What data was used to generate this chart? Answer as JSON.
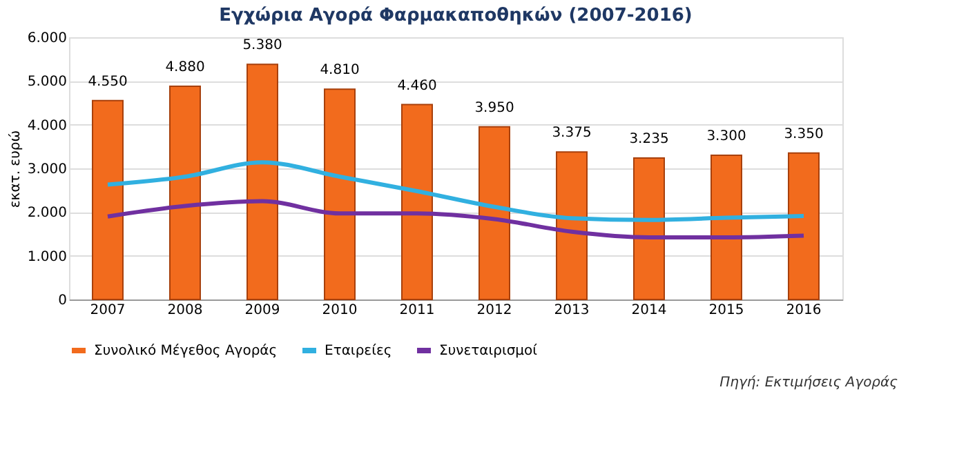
{
  "chart_data": {
    "type": "bar",
    "title": "Εγχώρια Αγορά Φαρμακαποθηκών (2007-2016)",
    "ylabel": "εκατ. ευρώ",
    "categories": [
      "2007",
      "2008",
      "2009",
      "2010",
      "2011",
      "2012",
      "2013",
      "2014",
      "2015",
      "2016"
    ],
    "series": [
      {
        "name": "Συνολικό Μέγεθος Αγοράς",
        "color": "#f26b1d",
        "values": [
          4550,
          4880,
          5380,
          4810,
          4460,
          3950,
          3375,
          3235,
          3300,
          3350
        ],
        "value_labels": [
          "4.550",
          "4.880",
          "5.380",
          "4.810",
          "4.460",
          "3.950",
          "3.375",
          "3.235",
          "3.300",
          "3.350"
        ]
      },
      {
        "name": "Εταιρείες",
        "type": "line",
        "color": "#31b0e0",
        "values": [
          2630,
          2810,
          3140,
          2810,
          2480,
          2120,
          1860,
          1820,
          1870,
          1910
        ]
      },
      {
        "name": "Συνεταιρισμοί",
        "type": "line",
        "color": "#7030a0",
        "values": [
          1900,
          2140,
          2250,
          1970,
          1970,
          1840,
          1550,
          1420,
          1420,
          1460
        ]
      }
    ],
    "ylim": [
      0,
      6000
    ],
    "yticks": [
      0,
      {
        "value": 1000,
        "label": "1.000"
      },
      {
        "value": 2000,
        "label": "2.000"
      },
      {
        "value": 3000,
        "label": "3.000"
      },
      {
        "value": 4000,
        "label": "4.000"
      },
      {
        "value": 5000,
        "label": "5.000"
      },
      {
        "value": 6000,
        "label": "6.000"
      }
    ],
    "grid": "y",
    "legend": "bottom",
    "annotations": [
      "Πηγή: Εκτιμήσεις Αγοράς"
    ]
  }
}
